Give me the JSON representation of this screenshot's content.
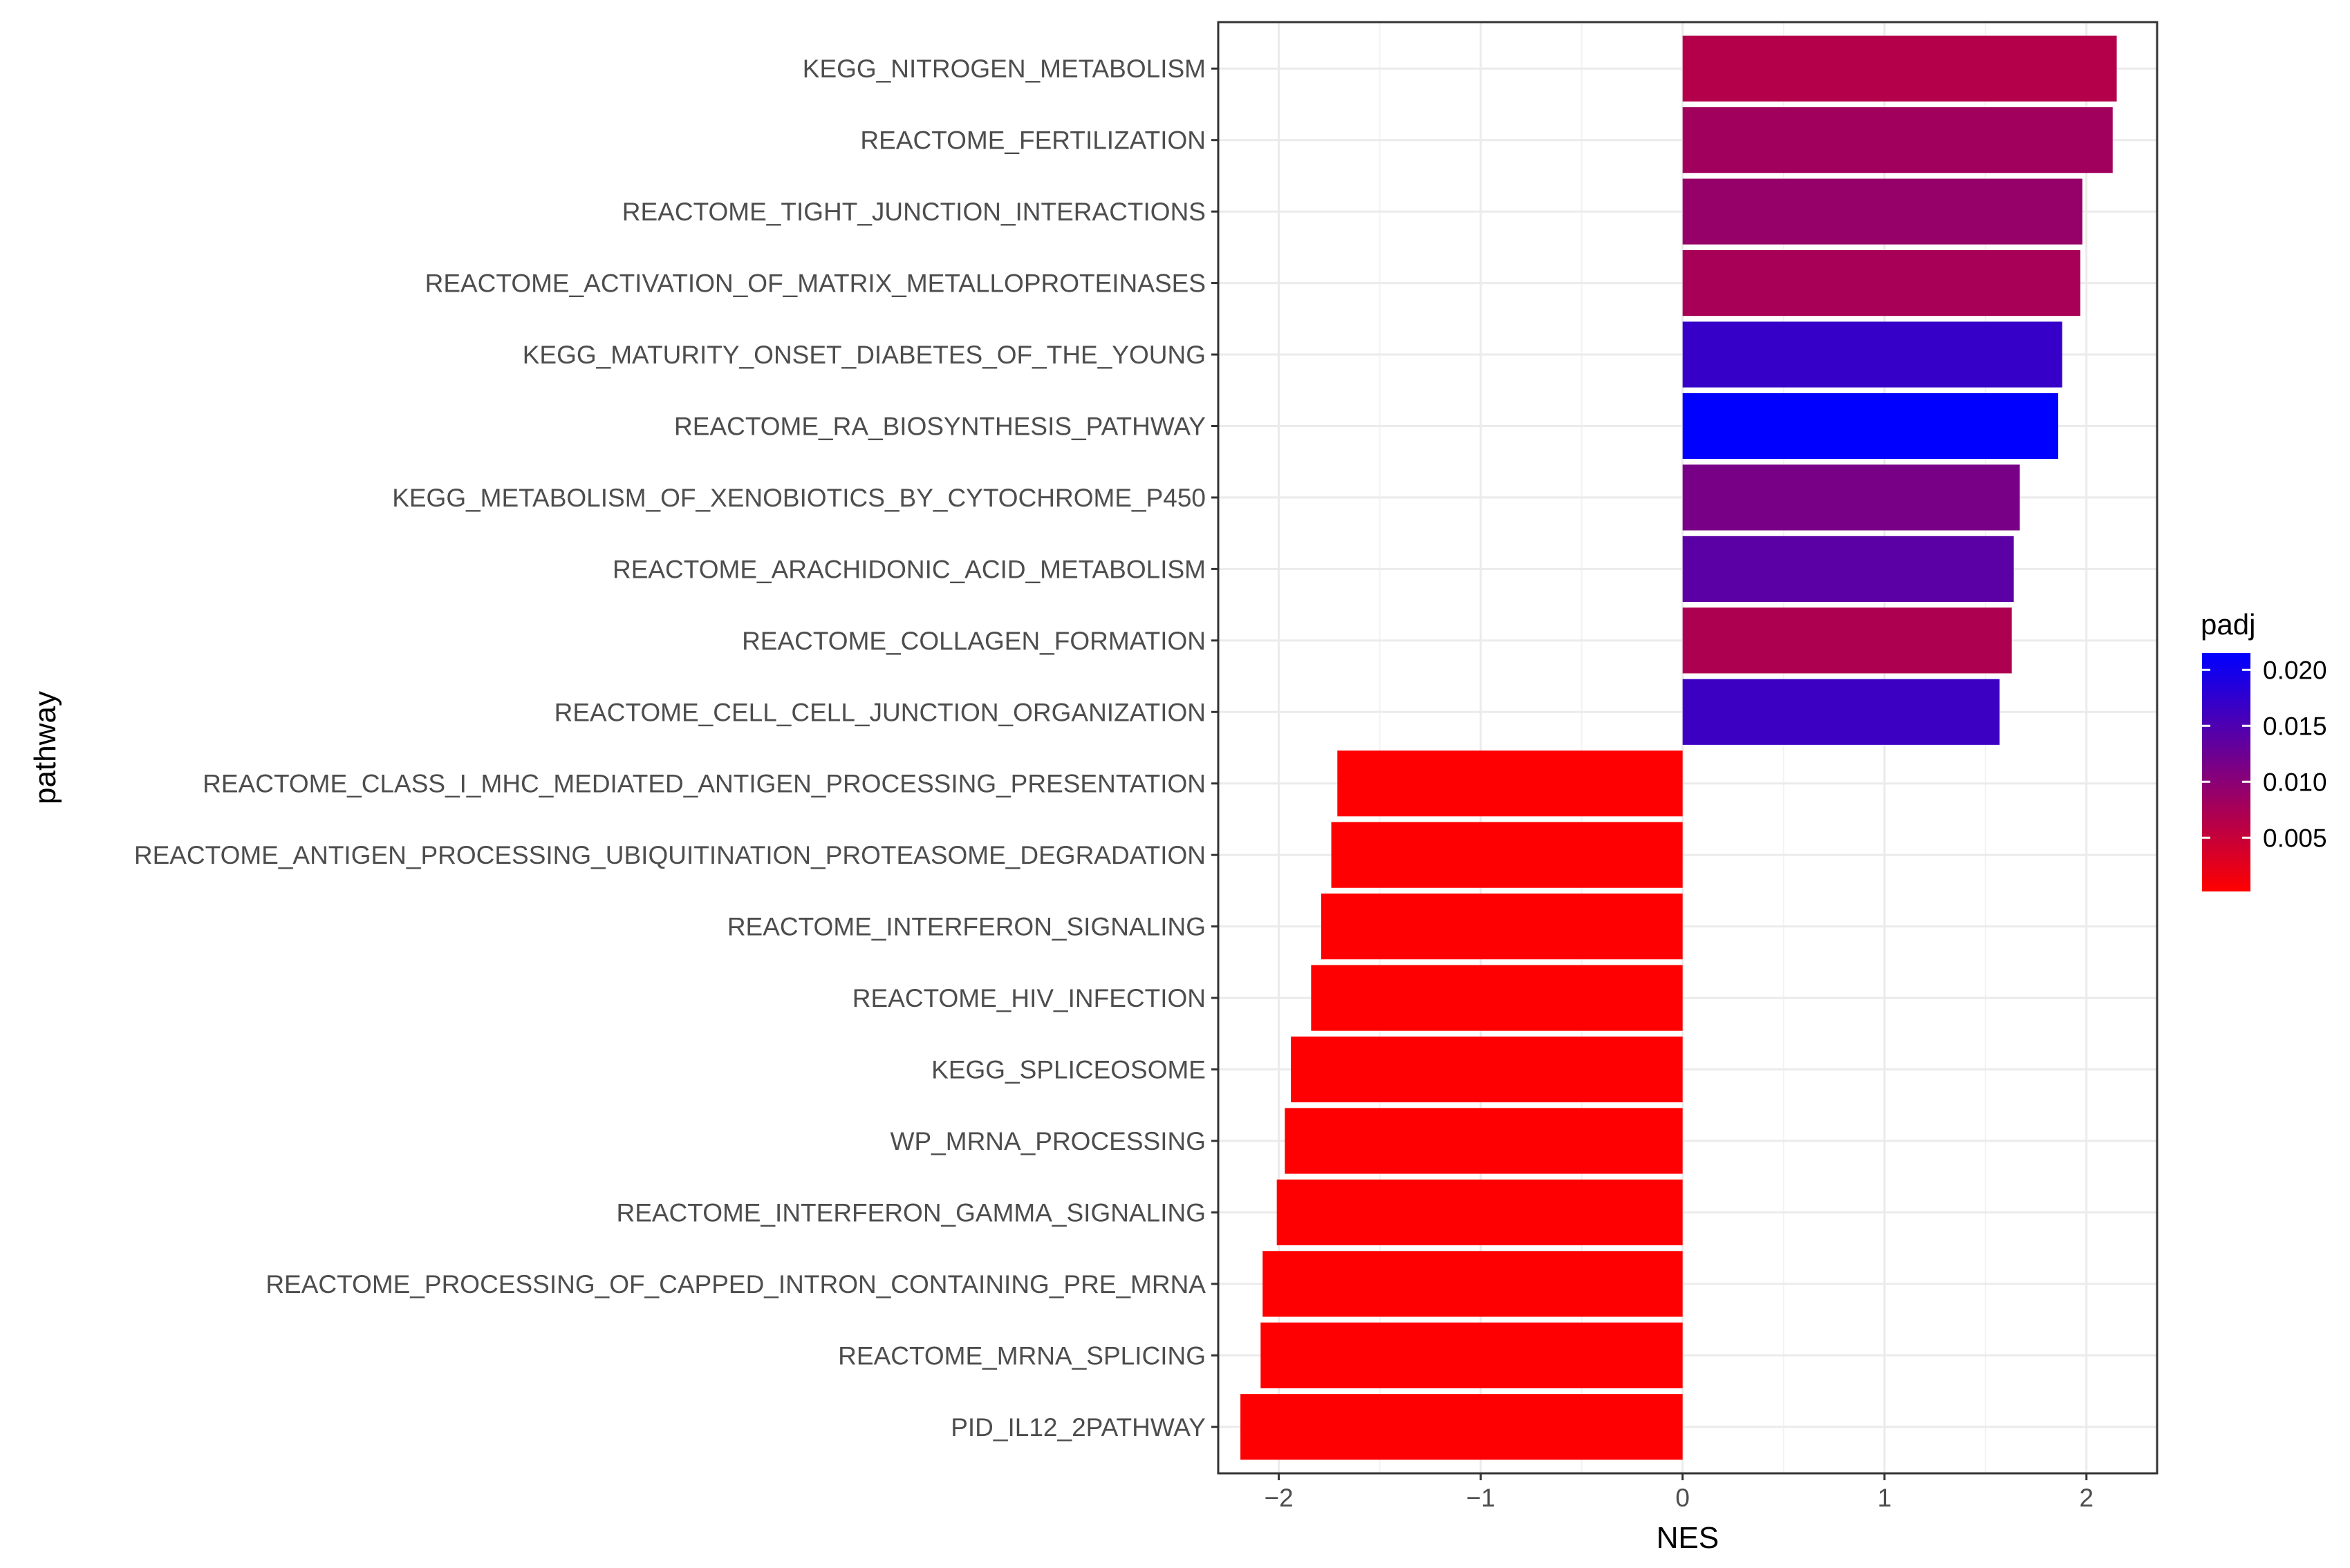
{
  "chart_data": {
    "type": "bar",
    "orientation": "horizontal",
    "xlabel": "NES",
    "ylabel": "pathway",
    "xlim": [
      -2.3,
      2.35
    ],
    "xticks": [
      -2,
      -1,
      0,
      1,
      2
    ],
    "xtick_labels": [
      "−2",
      "−1",
      "0",
      "1",
      "2"
    ],
    "grid": true,
    "legend_position": "right",
    "legend": {
      "title": "padj",
      "min": 0.0002,
      "max": 0.0215,
      "ticks": [
        0.005,
        0.01,
        0.015,
        0.02
      ],
      "tick_labels": [
        "0.005",
        "0.010",
        "0.015",
        "0.020"
      ],
      "low_color": "#ff0000",
      "high_color": "#0000ff"
    },
    "bars": [
      {
        "pathway": "KEGG_NITROGEN_METABOLISM",
        "nes": 2.15,
        "padj": 0.0065
      },
      {
        "pathway": "REACTOME_FERTILIZATION",
        "nes": 2.13,
        "padj": 0.008
      },
      {
        "pathway": "REACTOME_TIGHT_JUNCTION_INTERACTIONS",
        "nes": 1.98,
        "padj": 0.009
      },
      {
        "pathway": "REACTOME_ACTIVATION_OF_MATRIX_METALLOPROTEINASES",
        "nes": 1.97,
        "padj": 0.0075
      },
      {
        "pathway": "KEGG_MATURITY_ONSET_DIABETES_OF_THE_YOUNG",
        "nes": 1.88,
        "padj": 0.017
      },
      {
        "pathway": "REACTOME_RA_BIOSYNTHESIS_PATHWAY",
        "nes": 1.86,
        "padj": 0.0215
      },
      {
        "pathway": "KEGG_METABOLISM_OF_XENOBIOTICS_BY_CYTOCHROME_P450",
        "nes": 1.67,
        "padj": 0.0115
      },
      {
        "pathway": "REACTOME_ARACHIDONIC_ACID_METABOLISM",
        "nes": 1.64,
        "padj": 0.014
      },
      {
        "pathway": "REACTOME_COLLAGEN_FORMATION",
        "nes": 1.63,
        "padj": 0.007
      },
      {
        "pathway": "REACTOME_CELL_CELL_JUNCTION_ORGANIZATION",
        "nes": 1.57,
        "padj": 0.0165
      },
      {
        "pathway": "REACTOME_CLASS_I_MHC_MEDIATED_ANTIGEN_PROCESSING_PRESENTATION",
        "nes": -1.71,
        "padj": 0.0003
      },
      {
        "pathway": "REACTOME_ANTIGEN_PROCESSING_UBIQUITINATION_PROTEASOME_DEGRADATION",
        "nes": -1.74,
        "padj": 0.0003
      },
      {
        "pathway": "REACTOME_INTERFERON_SIGNALING",
        "nes": -1.79,
        "padj": 0.0003
      },
      {
        "pathway": "REACTOME_HIV_INFECTION",
        "nes": -1.84,
        "padj": 0.0003
      },
      {
        "pathway": "KEGG_SPLICEOSOME",
        "nes": -1.94,
        "padj": 0.0003
      },
      {
        "pathway": "WP_MRNA_PROCESSING",
        "nes": -1.97,
        "padj": 0.0003
      },
      {
        "pathway": "REACTOME_INTERFERON_GAMMA_SIGNALING",
        "nes": -2.01,
        "padj": 0.0003
      },
      {
        "pathway": "REACTOME_PROCESSING_OF_CAPPED_INTRON_CONTAINING_PRE_MRNA",
        "nes": -2.08,
        "padj": 0.0003
      },
      {
        "pathway": "REACTOME_MRNA_SPLICING",
        "nes": -2.09,
        "padj": 0.0003
      },
      {
        "pathway": "PID_IL12_2PATHWAY",
        "nes": -2.19,
        "padj": 0.0003
      }
    ]
  }
}
